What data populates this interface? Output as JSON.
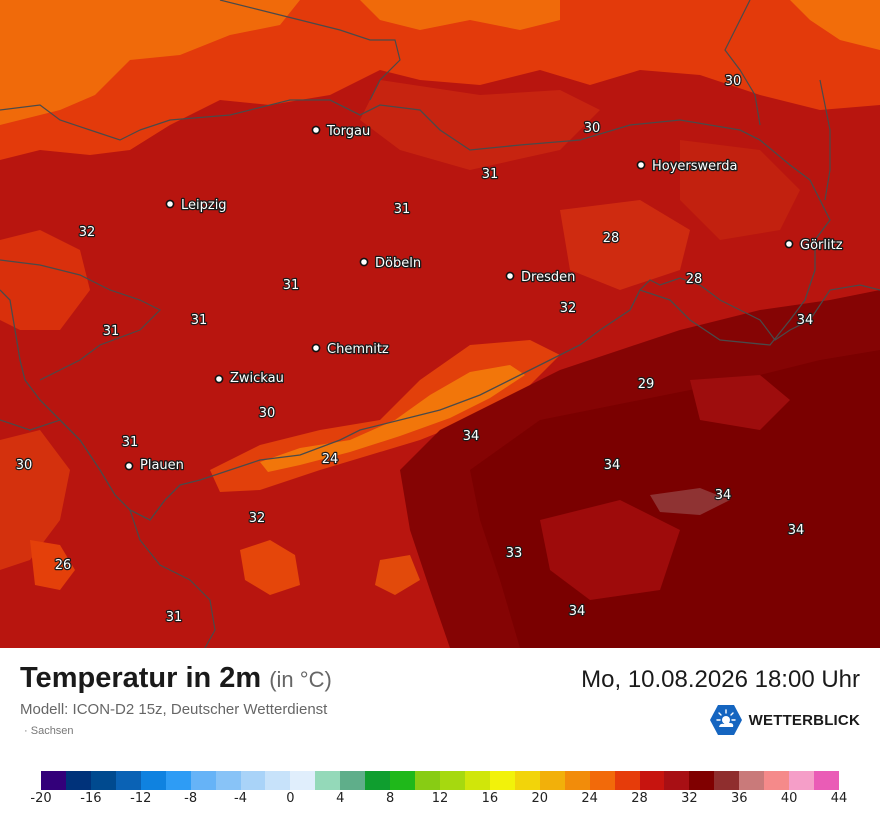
{
  "map": {
    "cities": [
      {
        "name": "Torgau"
      },
      {
        "name": "Hoyerswerda"
      },
      {
        "name": "Leipzig"
      },
      {
        "name": "Görlitz"
      },
      {
        "name": "Döbeln"
      },
      {
        "name": "Dresden"
      },
      {
        "name": "Chemnitz"
      },
      {
        "name": "Zwickau"
      },
      {
        "name": "Plauen"
      }
    ],
    "values": [
      "30",
      "30",
      "31",
      "31",
      "32",
      "28",
      "31",
      "28",
      "32",
      "31",
      "31",
      "34",
      "29",
      "30",
      "31",
      "34",
      "24",
      "34",
      "30",
      "34",
      "32",
      "34",
      "33",
      "26",
      "34",
      "31"
    ]
  },
  "footer": {
    "title": "Temperatur in 2m",
    "unit": "(in °C)",
    "model": "Modell: ICON-D2 15z, Deutscher Wetterdienst",
    "region": "Sachsen",
    "datetime": "Mo, 10.08.2026 18:00 Uhr",
    "brand": "WETTERBLICK"
  },
  "legend": {
    "colors": [
      "#33007a",
      "#00327a",
      "#004a8f",
      "#0a62b5",
      "#0f82e0",
      "#2e9cf5",
      "#66b3f7",
      "#88c3f7",
      "#a9d3f8",
      "#c7e2fa",
      "#e0eefc",
      "#94d9b9",
      "#5fae8a",
      "#0f9e2f",
      "#1fb81a",
      "#88cc14",
      "#a6d90f",
      "#d0e60a",
      "#f2f20a",
      "#f2d40a",
      "#f2b00a",
      "#f28c0a",
      "#f26a0a",
      "#e63c0a",
      "#c7140f",
      "#a80f14",
      "#800000",
      "#8f2e2e",
      "#c97a7a",
      "#f58a8a",
      "#f59ec8",
      "#ea5cb6"
    ],
    "ticks": [
      "-20",
      "-16",
      "-12",
      "-8",
      "-4",
      "0",
      "4",
      "8",
      "12",
      "16",
      "20",
      "24",
      "28",
      "32",
      "36",
      "40",
      "44"
    ]
  }
}
